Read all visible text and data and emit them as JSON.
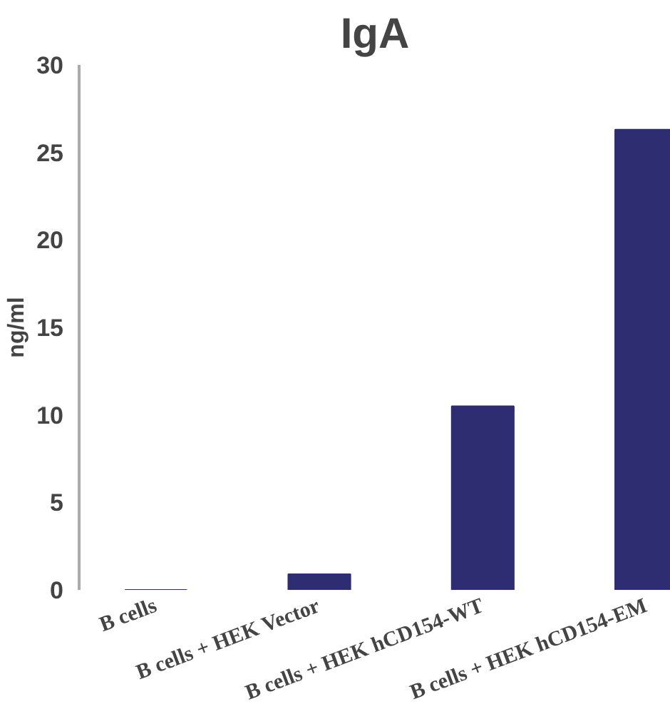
{
  "chart_data": {
    "type": "bar",
    "title": "IgA",
    "ylabel": "ng/ml",
    "categories": [
      "B cells",
      "B cells + HEK Vector",
      "B cells + HEK hCD154-WT",
      "B cells + HEK hCD154-EM"
    ],
    "values": [
      0,
      0.9,
      10.5,
      26.3
    ],
    "color": "#2e2d72",
    "ylim": [
      0,
      30
    ],
    "yticks": [
      0,
      5,
      10,
      15,
      20,
      25,
      30
    ],
    "grid": false
  }
}
